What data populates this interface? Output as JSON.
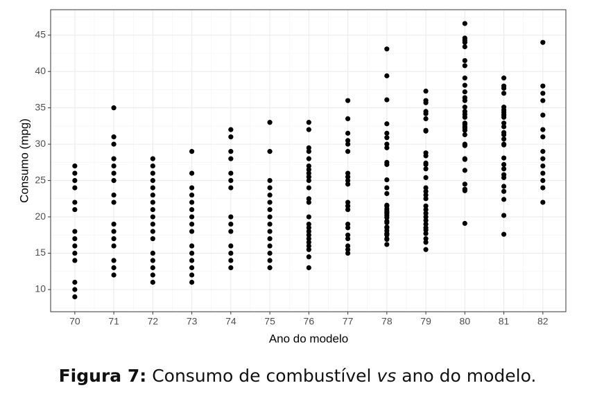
{
  "chart_data": {
    "type": "scatter",
    "x_label": "Ano do modelo",
    "y_label": "Consumo (mpg)",
    "x": [
      70,
      70,
      70,
      70,
      70,
      70,
      70,
      70,
      70,
      70,
      70,
      70,
      70,
      70,
      71,
      71,
      71,
      71,
      71,
      71,
      71,
      71,
      71,
      71,
      71,
      71,
      71,
      71,
      71,
      71,
      72,
      72,
      72,
      72,
      72,
      72,
      72,
      72,
      72,
      72,
      72,
      72,
      72,
      72,
      72,
      72,
      72,
      73,
      73,
      73,
      73,
      73,
      73,
      73,
      73,
      73,
      73,
      73,
      73,
      73,
      73,
      73,
      74,
      74,
      74,
      74,
      74,
      74,
      74,
      74,
      74,
      74,
      74,
      74,
      74,
      74,
      75,
      75,
      75,
      75,
      75,
      75,
      75,
      75,
      75,
      75,
      75,
      75,
      75,
      75,
      75,
      76,
      76,
      76,
      76,
      76,
      76,
      76,
      76,
      76,
      76,
      76,
      76,
      76,
      76,
      76,
      76,
      76,
      76,
      76,
      76,
      76,
      76,
      76,
      76,
      77,
      77,
      77,
      77,
      77,
      77,
      77,
      77,
      77,
      77,
      77,
      77,
      77,
      77,
      77,
      77,
      77,
      77,
      77,
      77,
      78,
      78,
      78,
      78,
      78,
      78,
      78,
      78,
      78,
      78,
      78,
      78,
      78,
      78,
      78,
      78,
      78,
      78,
      78,
      78,
      78,
      78,
      78,
      78,
      78,
      78,
      78,
      78,
      78,
      78,
      78,
      78,
      79,
      79,
      79,
      79,
      79,
      79,
      79,
      79,
      79,
      79,
      79,
      79,
      79,
      79,
      79,
      79,
      79,
      79,
      79,
      79,
      79,
      79,
      79,
      79,
      79,
      79,
      79,
      79,
      79,
      79,
      80,
      80,
      80,
      80,
      80,
      80,
      80,
      80,
      80,
      80,
      80,
      80,
      80,
      80,
      80,
      80,
      80,
      80,
      80,
      80,
      80,
      80,
      80,
      80,
      80,
      80,
      80,
      80,
      80,
      80,
      80,
      81,
      81,
      81,
      81,
      81,
      81,
      81,
      81,
      81,
      81,
      81,
      81,
      81,
      81,
      81,
      81,
      81,
      81,
      81,
      81,
      81,
      81,
      81,
      81,
      81,
      81,
      81,
      82,
      82,
      82,
      82,
      82,
      82,
      82,
      82,
      82,
      82,
      82,
      82,
      82,
      82
    ],
    "values": [
      27,
      26,
      25,
      24,
      22,
      21,
      18,
      17,
      16,
      15,
      14,
      11,
      10,
      9,
      35,
      31,
      30,
      28,
      27,
      26,
      25,
      23,
      22,
      19,
      18,
      17,
      16,
      14,
      13,
      12,
      28,
      27,
      26,
      25,
      24,
      23,
      22,
      21,
      20,
      19,
      18,
      17,
      15,
      14,
      13,
      12,
      11,
      29,
      26,
      24,
      23,
      22,
      21,
      20,
      19,
      18,
      16,
      15,
      14,
      13,
      12,
      11,
      32,
      31,
      29,
      28,
      26,
      25,
      24,
      20,
      19,
      18,
      16,
      15,
      14,
      13,
      33,
      29,
      25,
      24,
      23,
      22,
      21,
      20,
      19,
      18,
      17,
      16,
      15,
      14,
      13,
      33,
      32,
      29.5,
      29,
      28,
      27,
      26.5,
      26,
      25.5,
      25,
      24,
      22.5,
      22,
      20,
      19,
      18.5,
      18,
      17.5,
      17,
      16.5,
      16,
      15.5,
      14.5,
      13,
      36,
      33.5,
      31.5,
      30.5,
      30,
      29,
      26,
      25.5,
      25,
      24.5,
      22,
      21.5,
      21,
      19,
      18.5,
      17.5,
      17,
      16,
      15.5,
      15,
      43.1,
      39.4,
      36.1,
      32.8,
      31.5,
      30.9,
      30,
      29.5,
      27.5,
      27.2,
      25.1,
      24,
      23.2,
      21.6,
      21.5,
      21.1,
      20.8,
      20.6,
      20.5,
      20.2,
      19.9,
      19.4,
      19.2,
      18.6,
      18.5,
      18.1,
      17.7,
      17.6,
      17.5,
      17,
      16.9,
      16.2,
      37.3,
      36,
      35.7,
      34.5,
      34.2,
      33.5,
      31.9,
      31.8,
      28.8,
      28.4,
      27.4,
      27.2,
      26.6,
      25.4,
      24,
      23.5,
      23,
      22.5,
      21.5,
      21,
      20.5,
      20,
      19.5,
      19,
      18.5,
      18.2,
      17.7,
      17,
      16.5,
      15.5,
      46.6,
      44.6,
      44.3,
      44,
      43.4,
      41.5,
      40.8,
      39.1,
      38.1,
      37.2,
      36.4,
      36,
      35.1,
      34.5,
      34.1,
      33.7,
      32.9,
      32.7,
      32.4,
      32.2,
      31.9,
      31.3,
      30,
      29.8,
      28,
      27.9,
      26.4,
      24.5,
      23.8,
      23.6,
      19.1,
      39.1,
      38,
      37.7,
      37,
      35.1,
      34.7,
      34.4,
      34.1,
      34,
      33.7,
      32.9,
      32.4,
      31.6,
      31.3,
      30.7,
      30,
      29.9,
      28.1,
      27.2,
      26.6,
      25.8,
      25.4,
      24.2,
      23.5,
      22.4,
      20.2,
      17.6,
      44,
      38,
      37,
      36,
      34,
      32,
      31,
      29,
      28,
      27,
      26,
      25,
      24,
      22
    ],
    "color": "#000000",
    "xlim": [
      69.38,
      82.59
    ],
    "xticks": [
      70,
      71,
      72,
      73,
      74,
      75,
      76,
      77,
      78,
      79,
      80,
      81,
      82
    ],
    "ylim": [
      6.95,
      48.5
    ],
    "yticks": [
      10,
      15,
      20,
      25,
      30,
      35,
      40,
      45
    ],
    "grid": true
  },
  "caption": {
    "label": "Figura 7:",
    "before": "Consumo de combustível",
    "emphasis": "vs",
    "after": "ano do modelo."
  }
}
